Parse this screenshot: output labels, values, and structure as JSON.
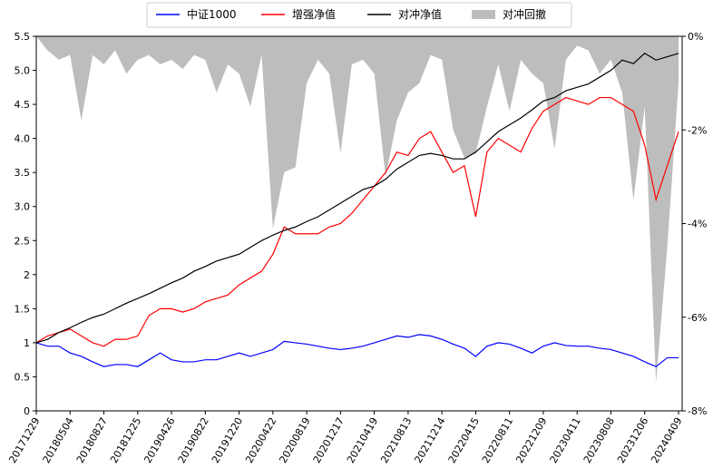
{
  "chart_data": {
    "type": "line",
    "categories": [
      "20171229",
      null,
      null,
      "20180504",
      null,
      null,
      "20180827",
      null,
      null,
      "20181225",
      null,
      null,
      "20190426",
      null,
      null,
      "20190822",
      null,
      null,
      "20191220",
      null,
      null,
      "20200422",
      null,
      null,
      "20200819",
      null,
      null,
      "20201217",
      null,
      null,
      "20210419",
      null,
      null,
      "20210813",
      null,
      null,
      "20211214",
      null,
      null,
      "20220415",
      null,
      null,
      "20220811",
      null,
      null,
      "20221209",
      null,
      null,
      "20230411",
      null,
      null,
      "20230808",
      null,
      null,
      "20231206",
      null,
      null,
      "20240409"
    ],
    "series": [
      {
        "name": "中证1000",
        "color": "#0000ff",
        "values": [
          1.0,
          0.95,
          0.95,
          0.85,
          0.8,
          0.72,
          0.65,
          0.68,
          0.68,
          0.65,
          0.75,
          0.85,
          0.75,
          0.72,
          0.72,
          0.75,
          0.75,
          0.8,
          0.85,
          0.8,
          0.85,
          0.9,
          1.02,
          1.0,
          0.98,
          0.95,
          0.92,
          0.9,
          0.92,
          0.95,
          1.0,
          1.05,
          1.1,
          1.08,
          1.12,
          1.1,
          1.05,
          0.98,
          0.92,
          0.8,
          0.95,
          1.0,
          0.98,
          0.92,
          0.85,
          0.95,
          1.0,
          0.96,
          0.95,
          0.95,
          0.92,
          0.9,
          0.85,
          0.8,
          0.72,
          0.65,
          0.78,
          0.78
        ]
      },
      {
        "name": "增强净值",
        "color": "#ff0000",
        "values": [
          1.0,
          1.1,
          1.15,
          1.2,
          1.1,
          1.0,
          0.95,
          1.05,
          1.05,
          1.1,
          1.4,
          1.5,
          1.5,
          1.45,
          1.5,
          1.6,
          1.65,
          1.7,
          1.85,
          1.95,
          2.05,
          2.3,
          2.7,
          2.6,
          2.6,
          2.6,
          2.7,
          2.75,
          2.9,
          3.1,
          3.3,
          3.5,
          3.8,
          3.75,
          4.0,
          4.1,
          3.8,
          3.5,
          3.6,
          2.85,
          3.8,
          4.0,
          3.9,
          3.8,
          4.15,
          4.4,
          4.5,
          4.6,
          4.55,
          4.5,
          4.6,
          4.6,
          4.5,
          4.4,
          3.9,
          3.1,
          3.6,
          4.1
        ]
      },
      {
        "name": "对冲净值",
        "color": "#000000",
        "values": [
          1.0,
          1.05,
          1.15,
          1.22,
          1.3,
          1.37,
          1.42,
          1.5,
          1.58,
          1.65,
          1.72,
          1.8,
          1.88,
          1.95,
          2.05,
          2.12,
          2.2,
          2.25,
          2.3,
          2.4,
          2.5,
          2.58,
          2.65,
          2.7,
          2.78,
          2.85,
          2.95,
          3.05,
          3.15,
          3.25,
          3.3,
          3.4,
          3.55,
          3.65,
          3.75,
          3.78,
          3.75,
          3.7,
          3.7,
          3.8,
          3.95,
          4.1,
          4.2,
          4.3,
          4.42,
          4.55,
          4.6,
          4.7,
          4.75,
          4.8,
          4.9,
          5.0,
          5.15,
          5.1,
          5.25,
          5.15,
          5.2,
          5.25
        ]
      },
      {
        "name": "对冲回撤",
        "color": "#bdbdbd",
        "axis": "y2",
        "style": "area",
        "values": [
          0,
          -0.3,
          -0.5,
          -0.4,
          -1.8,
          -0.4,
          -0.6,
          -0.3,
          -0.8,
          -0.5,
          -0.4,
          -0.6,
          -0.5,
          -0.7,
          -0.4,
          -0.5,
          -1.2,
          -0.6,
          -0.8,
          -1.5,
          -0.4,
          -4.1,
          -2.9,
          -2.8,
          -1.0,
          -0.5,
          -0.8,
          -2.5,
          -0.6,
          -0.5,
          -0.8,
          -3.0,
          -1.8,
          -1.2,
          -1.0,
          -0.4,
          -0.5,
          -2.0,
          -2.6,
          -2.5,
          -1.5,
          -0.6,
          -1.6,
          -0.5,
          -0.8,
          -1.0,
          -2.4,
          -0.5,
          -0.2,
          -0.3,
          -0.8,
          -0.5,
          -1.2,
          -3.5,
          -1.5,
          -7.4,
          -4.5,
          -1.0
        ]
      }
    ],
    "ylim": [
      0,
      5.5
    ],
    "yticks": [
      0,
      0.5,
      1,
      1.5,
      2,
      2.5,
      {
        "value": 3,
        "label": "3.0"
      },
      3.5,
      {
        "value": 4,
        "label": "4.0"
      },
      4.5,
      {
        "value": 5,
        "label": "5.0"
      },
      5.5
    ],
    "y2lim": [
      -8,
      0
    ],
    "y2ticks": [
      {
        "value": -8,
        "label": "-8%"
      },
      {
        "value": -6,
        "label": "-6%"
      },
      {
        "value": -4,
        "label": "-4%"
      },
      {
        "value": -2,
        "label": "-2%"
      },
      {
        "value": 0,
        "label": "0%"
      }
    ],
    "legend": "top"
  }
}
